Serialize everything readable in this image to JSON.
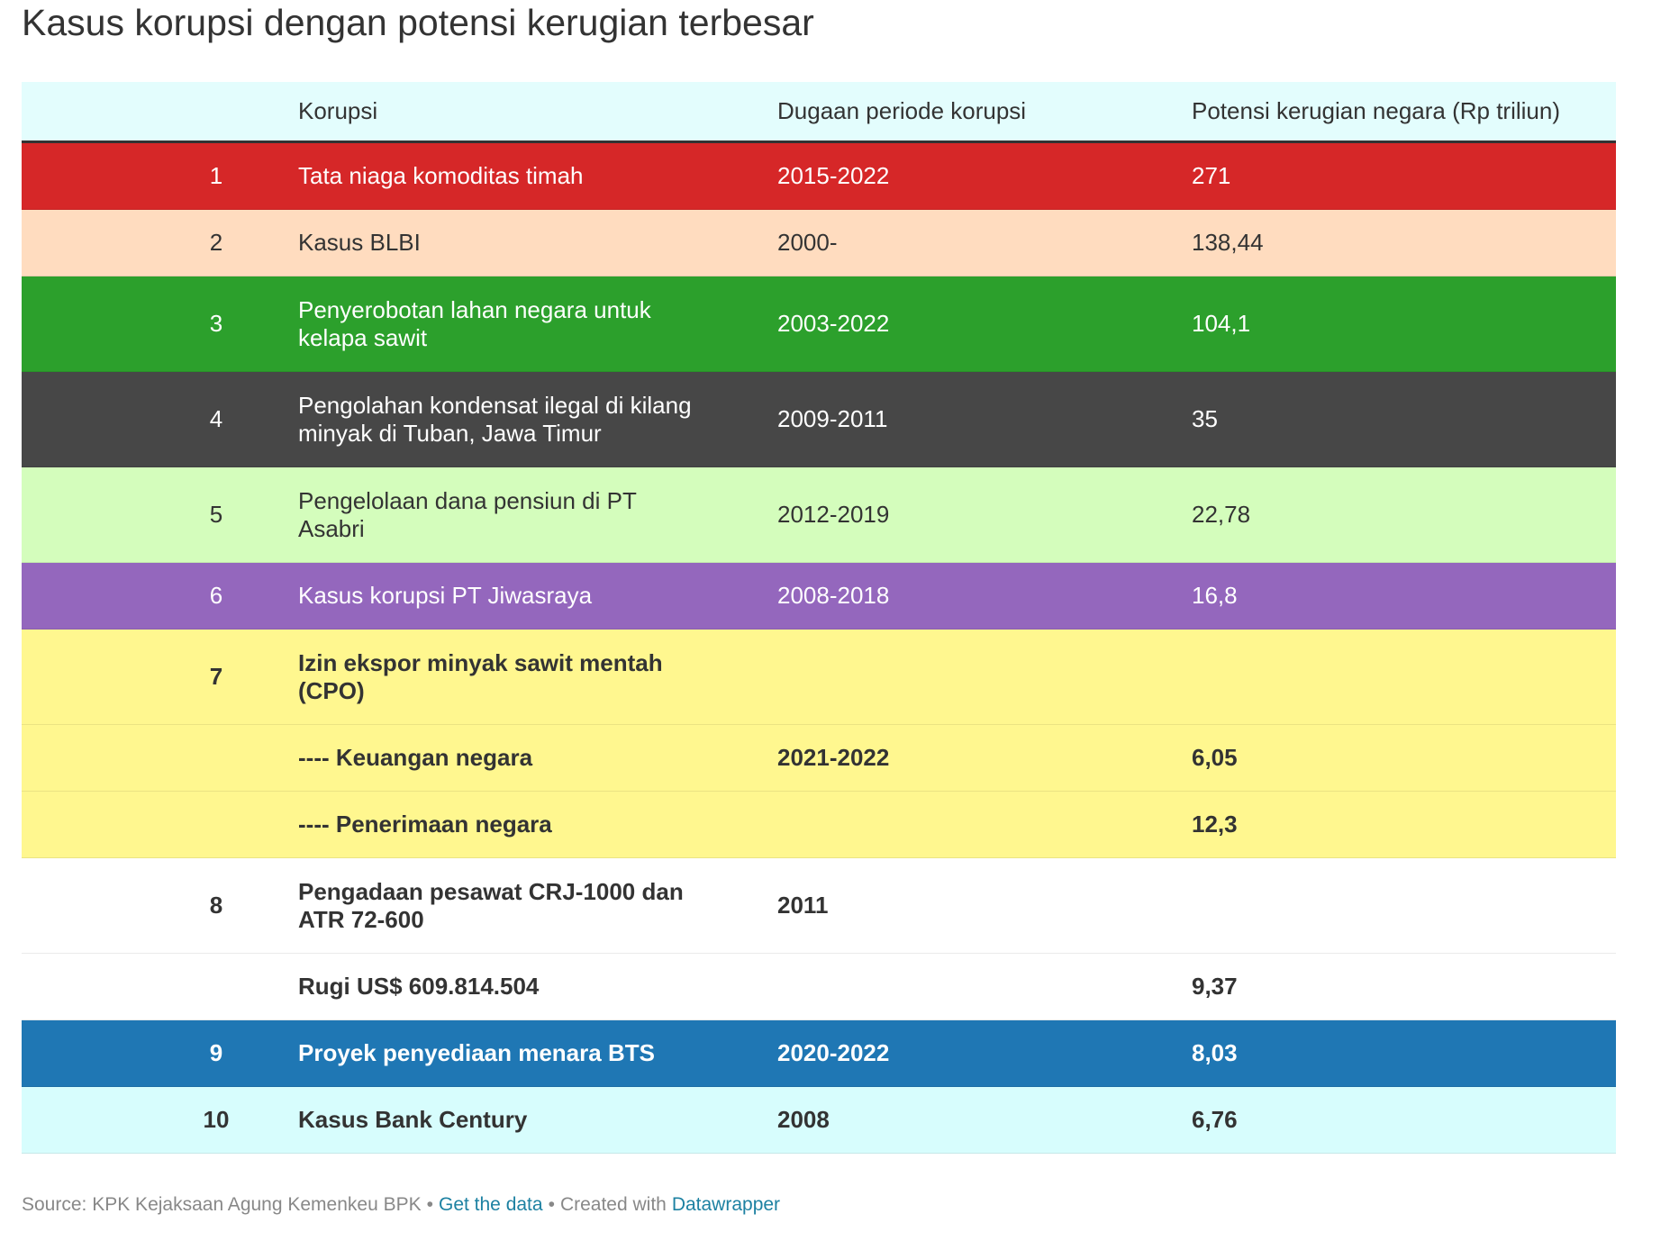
{
  "title": "Kasus korupsi dengan potensi kerugian terbesar",
  "table": {
    "header": {
      "cells": [
        null,
        "Korupsi",
        "Dugaan periode korupsi",
        "Potensi kerugian negara (Rp triliun)"
      ],
      "color": "#e3fdfd",
      "text_color": "#333333"
    },
    "rows": [
      {
        "cells": [
          "1",
          "Tata niaga komoditas timah",
          "2015-2022",
          "271"
        ],
        "color": "#d62728",
        "text_color": "#ffffff",
        "bold": false
      },
      {
        "cells": [
          "2",
          "Kasus BLBI",
          "2000-",
          "138,44"
        ],
        "color": "#ffdcbf",
        "text_color": "#333333",
        "bold": false
      },
      {
        "cells": [
          "3",
          "Penyerobotan lahan negara untuk kelapa sawit",
          "2003-2022",
          "104,1"
        ],
        "color": "#2ca02c",
        "text_color": "#ffffff",
        "bold": false
      },
      {
        "cells": [
          "4",
          "Pengolahan kondensat ilegal di kilang minyak di Tuban, Jawa Timur",
          "2009-2011",
          "35"
        ],
        "color": "#474747",
        "text_color": "#ffffff",
        "bold": false
      },
      {
        "cells": [
          "5",
          "Pengelolaan dana pensiun di PT Asabri",
          "2012-2019",
          "22,78"
        ],
        "color": "#d4fdbc",
        "text_color": "#333333",
        "bold": false
      },
      {
        "cells": [
          "6",
          "Kasus korupsi PT Jiwasraya",
          "2008-2018",
          "16,8"
        ],
        "color": "#9467bd",
        "text_color": "#ffffff",
        "bold": false
      },
      {
        "cells": [
          "7",
          "Izin ekspor minyak sawit mentah (CPO)",
          null,
          null
        ],
        "color": "#fff78f",
        "text_color": "#333333",
        "bold": true
      },
      {
        "cells": [
          null,
          "---- Keuangan negara",
          "2021-2022",
          "6,05"
        ],
        "color": "#fff78f",
        "text_color": "#333333",
        "bold": true
      },
      {
        "cells": [
          null,
          "---- Penerimaan negara",
          null,
          "12,3"
        ],
        "color": "#fff78f",
        "text_color": "#333333",
        "bold": true
      },
      {
        "cells": [
          "8",
          "Pengadaan pesawat CRJ-1000 dan ATR 72-600",
          "2011",
          null
        ],
        "color": "#ffffff",
        "text_color": "#333333",
        "bold": true
      },
      {
        "cells": [
          null,
          "Rugi US$ 609.814.504",
          null,
          "9,37"
        ],
        "color": "#ffffff",
        "text_color": "#333333",
        "bold": true
      },
      {
        "cells": [
          "9",
          "Proyek penyediaan menara BTS",
          "2020-2022",
          "8,03"
        ],
        "color": "#1f77b4",
        "text_color": "#ffffff",
        "bold": true
      },
      {
        "cells": [
          "10",
          "Kasus Bank Century",
          "2008",
          "6,76"
        ],
        "color": "#d7fdfd",
        "text_color": "#333333",
        "bold": true
      }
    ]
  },
  "footer": [
    {
      "text": "Source: KPK Kejaksaan Agung Kemenkeu BPK",
      "link": false
    },
    {
      "text": "•",
      "link": false
    },
    {
      "text": "Get the data",
      "link": true
    },
    {
      "text": "•",
      "link": false
    },
    {
      "text": "Created with",
      "link": false
    },
    {
      "text": "Datawrapper",
      "link": true
    }
  ]
}
